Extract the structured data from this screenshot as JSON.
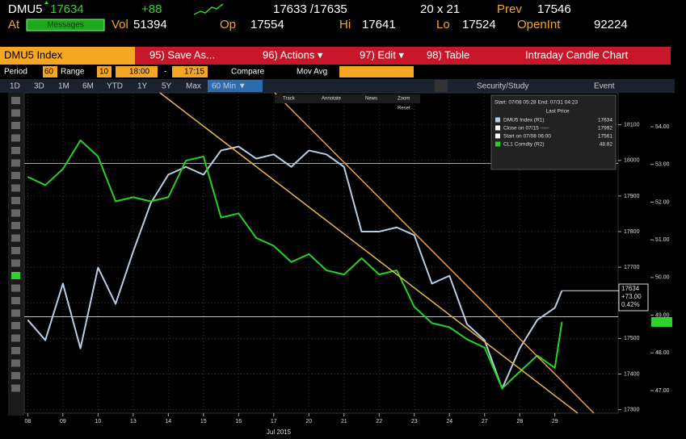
{
  "header": {
    "ticker": "DMU5",
    "last": 17634,
    "change": "+88",
    "bid_ask": "17633 /17635",
    "size": "20 x 21",
    "prev_label": "Prev",
    "prev": 17546,
    "at_label": "At",
    "messages": "Messages",
    "vol_label": "Vol",
    "vol": 51394,
    "open_label": "Op",
    "open": 17554,
    "high_label": "Hi",
    "high": 17641,
    "low_label": "Lo",
    "low": 17524,
    "oi_label": "OpenInt",
    "oi": 92224
  },
  "toolbar": {
    "security": "DMU5 Index",
    "save": "95) Save As...",
    "actions": "96) Actions ▾",
    "edit": "97) Edit ▾",
    "table": "98) Table",
    "view": "Intraday Candle Chart"
  },
  "settings": {
    "period_label": "Period",
    "period": "60",
    "range_label": "Range",
    "range": "10",
    "from": "18:00",
    "dash": "-",
    "to": "17:15",
    "compare": "Compare",
    "mov_avg": "Mov Avg"
  },
  "ranges": [
    "1D",
    "3D",
    "1M",
    "6M",
    "YTD",
    "1Y",
    "5Y",
    "Max",
    "60 Min ▼"
  ],
  "right_buttons": [
    "Security/Study",
    "Event"
  ],
  "chart_tools": [
    "Track",
    "Annotate",
    "News",
    "Zoom",
    "Reset"
  ],
  "legend": {
    "period": "Start: 07/08 05:28 End: 07/31 04:23",
    "heading": "Last Price",
    "entries": [
      {
        "name": "DMU5 Index (R1)",
        "value": 17634
      },
      {
        "name": "Close on 07/15 -----",
        "value": 17992
      },
      {
        "name": "Start on 07/08 06:00",
        "value": 17561
      },
      {
        "name": "CL1 Comdty (R2)",
        "value": 48.82
      }
    ]
  },
  "price_tag": {
    "last": 17634,
    "change": "+73.00",
    "pct": "0.42%"
  },
  "chart_data": {
    "type": "line",
    "x_label": "Jul 2015",
    "x": [
      0,
      0.5,
      1,
      1.5,
      2,
      2.5,
      3,
      3.5,
      4,
      4.5,
      5,
      5.5,
      6,
      6.5,
      7,
      7.5,
      8,
      8.5,
      9,
      9.5,
      10,
      10.5,
      11,
      11.5,
      12,
      12.5,
      13,
      13.5,
      14,
      14.5,
      15,
      15.2
    ],
    "xlim": [
      -0.1,
      16.8
    ],
    "xticks": [
      {
        "value": 0,
        "label": "08"
      },
      {
        "value": 1,
        "label": "09"
      },
      {
        "value": 2,
        "label": "10"
      },
      {
        "value": 3,
        "label": "13"
      },
      {
        "value": 4,
        "label": "14"
      },
      {
        "value": 5,
        "label": "15"
      },
      {
        "value": 6,
        "label": "16"
      },
      {
        "value": 7,
        "label": "17"
      },
      {
        "value": 8,
        "label": "20"
      },
      {
        "value": 9,
        "label": "21"
      },
      {
        "value": 10,
        "label": "22"
      },
      {
        "value": 11,
        "label": "23"
      },
      {
        "value": 12,
        "label": "24"
      },
      {
        "value": 13,
        "label": "27"
      },
      {
        "value": 14,
        "label": "28"
      },
      {
        "value": 15,
        "label": "29"
      }
    ],
    "ylim": [
      17290,
      18190
    ],
    "yticks": [
      17300,
      17400,
      17500,
      17600,
      17700,
      17800,
      17900,
      18000,
      18100
    ],
    "y2lim": [
      46.4,
      54.9
    ],
    "y2ticks": [
      {
        "value": 47,
        "label": "47.00"
      },
      {
        "value": 48,
        "label": "48.00"
      },
      {
        "value": 49,
        "label": "49.00"
      },
      {
        "value": 50,
        "label": "50.00"
      },
      {
        "value": 51,
        "label": "51.00"
      },
      {
        "value": 52,
        "label": "52.00"
      },
      {
        "value": 53,
        "label": "53.00"
      },
      {
        "value": 54,
        "label": "54.00"
      }
    ],
    "grid": true,
    "series": [
      {
        "name": "DMU5 Index (R1)",
        "color": "#b9cde3",
        "values": [
          17552,
          17495,
          17654,
          17472,
          17699,
          17597,
          17744,
          17880,
          17960,
          17982,
          17960,
          18028,
          18039,
          18005,
          18017,
          17982,
          18028,
          18017,
          17982,
          17800,
          17800,
          17812,
          17790,
          17654,
          17676,
          17540,
          17495,
          17359,
          17472,
          17552,
          17586,
          17634
        ]
      },
      {
        "name": "CL1 Comdty (R2)",
        "color": "#22d322",
        "axis": "y2",
        "values": [
          52.67,
          52.45,
          52.88,
          53.64,
          53.21,
          52.02,
          52.13,
          52.02,
          52.13,
          53.1,
          53.21,
          51.59,
          51.7,
          51.05,
          50.84,
          50.41,
          50.62,
          50.19,
          50.08,
          50.51,
          50.08,
          50.19,
          49.22,
          48.79,
          48.68,
          48.36,
          48.14,
          47.06,
          47.5,
          47.93,
          47.6,
          48.82
        ]
      }
    ]
  }
}
